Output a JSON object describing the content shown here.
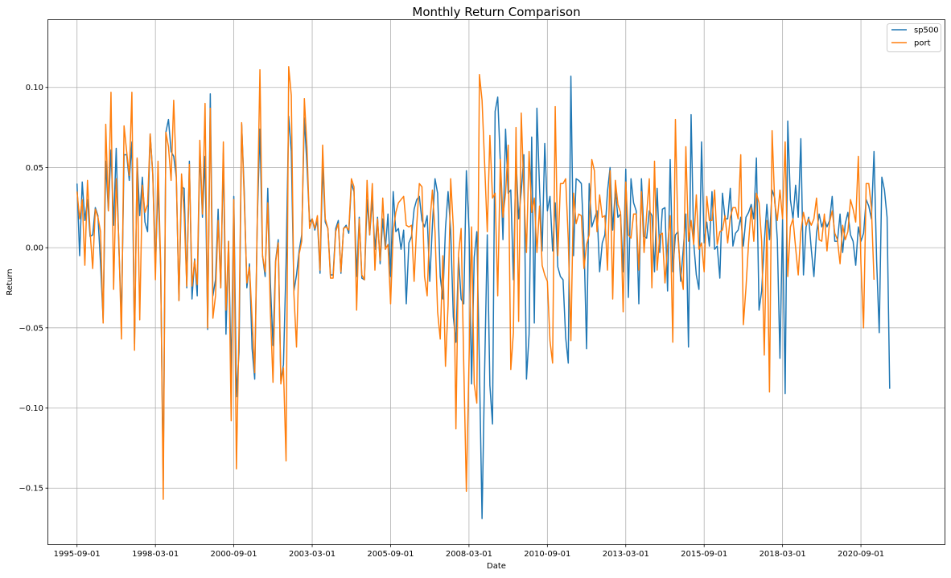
{
  "chart_data": {
    "type": "line",
    "title": "Monthly Return Comparison",
    "xlabel": "Date",
    "ylabel": "Return",
    "x_ticks": [
      "1995-09-01",
      "1998-03-01",
      "2000-09-01",
      "2003-03-01",
      "2005-09-01",
      "2008-03-01",
      "2010-09-01",
      "2013-03-01",
      "2015-09-01",
      "2018-03-01",
      "2020-09-01"
    ],
    "y_ticks": [
      -0.15,
      -0.1,
      -0.05,
      0.0,
      0.05,
      0.1
    ],
    "y_tick_labels": [
      "−0.15",
      "−0.10",
      "−0.05",
      "0.00",
      "0.05",
      "0.10"
    ],
    "xlim": [
      "1994-10-01",
      "2023-05-01"
    ],
    "ylim": [
      -0.185,
      0.142
    ],
    "grid": true,
    "legend_position": "top-right",
    "x_dates": {
      "start": "1995-09-01",
      "frequency": "monthly",
      "count": 325
    },
    "series": [
      {
        "name": "sp500",
        "color": "#1f77b4",
        "values": [
          0.04,
          -0.005,
          0.041,
          0.017,
          0.03,
          0.007,
          0.008,
          0.025,
          0.02,
          -0.01,
          -0.045,
          0.054,
          0.023,
          0.061,
          0.014,
          0.062,
          0.001,
          -0.045,
          0.058,
          0.058,
          0.042,
          0.066,
          -0.06,
          0.055,
          0.02,
          0.044,
          0.016,
          0.01,
          0.071,
          0.046,
          -0.012,
          0.039,
          -0.012,
          -0.145,
          0.072,
          0.08,
          0.06,
          0.057,
          0.044,
          -0.033,
          0.038,
          0.037,
          -0.025,
          0.054,
          -0.032,
          -0.007,
          -0.03,
          0.061,
          0.019,
          0.057,
          -0.051,
          0.096,
          -0.03,
          -0.02,
          0.024,
          -0.025,
          0.059,
          -0.054,
          0.004,
          -0.08,
          0.032,
          -0.093,
          -0.065,
          0.077,
          0.035,
          -0.025,
          -0.01,
          -0.063,
          -0.082,
          0.018,
          0.074,
          -0.005,
          -0.018,
          0.037,
          -0.022,
          -0.061,
          -0.008,
          0.005,
          -0.083,
          -0.073,
          -0.01,
          0.082,
          0.06,
          -0.027,
          -0.017,
          -0.002,
          0.008,
          0.081,
          0.051,
          0.016,
          0.018,
          0.011,
          0.017,
          -0.016,
          0.051,
          0.016,
          0.012,
          -0.017,
          -0.017,
          0.012,
          0.017,
          -0.016,
          0.012,
          0.014,
          0.009,
          0.04,
          0.035,
          -0.018,
          0.019,
          -0.019,
          -0.02,
          0.03,
          0.008,
          0.03,
          -0.001,
          0.019,
          -0.01,
          0.018,
          -0.001,
          0.021,
          -0.018,
          0.035,
          0.01,
          0.012,
          -0.001,
          0.011,
          -0.035,
          0.003,
          0.007,
          0.024,
          0.03,
          0.032,
          0.017,
          0.013,
          0.02,
          -0.021,
          0.014,
          0.043,
          0.034,
          -0.018,
          -0.032,
          0.012,
          0.035,
          0.011,
          -0.043,
          -0.059,
          -0.006,
          -0.032,
          -0.035,
          0.048,
          0.012,
          -0.085,
          -0.006,
          0.01,
          -0.075,
          -0.169,
          -0.076,
          0.008,
          -0.086,
          -0.11,
          0.085,
          0.094,
          0.053,
          0.005,
          0.074,
          0.034,
          0.036,
          -0.02,
          0.057,
          0.018,
          0.035,
          0.058,
          -0.082,
          -0.054,
          0.069,
          -0.047,
          0.087,
          0.037,
          -0.002,
          0.065,
          0.023,
          0.032,
          -0.002,
          0.028,
          -0.012,
          -0.018,
          -0.02,
          -0.056,
          -0.072,
          0.107,
          -0.005,
          0.043,
          0.042,
          0.04,
          0.004,
          -0.063,
          0.04,
          0.013,
          0.018,
          0.023,
          -0.015,
          0.003,
          0.008,
          0.035,
          0.05,
          0.011,
          0.036,
          0.019,
          0.021,
          -0.015,
          0.049,
          -0.031,
          0.043,
          0.028,
          0.023,
          -0.035,
          0.043,
          0.007,
          0.006,
          0.023,
          0.02,
          -0.015,
          0.037,
          -0.003,
          0.024,
          0.025,
          -0.027,
          0.055,
          -0.015,
          0.008,
          0.01,
          -0.021,
          -0.001,
          0.021,
          -0.062,
          0.083,
          0.003,
          -0.017,
          -0.026,
          0.066,
          0.003,
          0.016,
          0.001,
          0.035,
          -0.001,
          0.001,
          -0.019,
          0.034,
          0.018,
          0.018,
          0.037,
          0.001,
          0.009,
          0.011,
          0.019,
          0.001,
          0.019,
          0.022,
          0.027,
          0.018,
          0.056,
          -0.039,
          -0.027,
          0.003,
          0.027,
          0.005,
          0.036,
          0.031,
          0.005,
          -0.069,
          0.018,
          -0.091,
          0.079,
          0.03,
          0.018,
          0.039,
          0.019,
          0.068,
          -0.017,
          0.013,
          0.019,
          -0.001,
          -0.018,
          0.009,
          0.021,
          0.013,
          0.018,
          0.013,
          0.017,
          0.032,
          0.004,
          0.004,
          0.021,
          -0.003,
          0.015,
          0.022,
          0.008,
          0.004,
          -0.011,
          0.013,
          0.004,
          0.009,
          0.03,
          0.026,
          0.018,
          0.06,
          -0.008,
          -0.053,
          0.044,
          0.036,
          0.019,
          -0.088
        ]
      },
      {
        "name": "port",
        "color": "#ff7f0e",
        "values": [
          0.035,
          0.018,
          0.03,
          -0.011,
          0.042,
          0.01,
          -0.013,
          0.024,
          0.019,
          0.01,
          -0.047,
          0.077,
          0.023,
          0.097,
          -0.026,
          0.043,
          0.005,
          -0.057,
          0.076,
          0.06,
          0.045,
          0.097,
          -0.064,
          0.056,
          -0.045,
          0.039,
          0.022,
          0.027,
          0.071,
          0.045,
          -0.02,
          0.054,
          -0.01,
          -0.157,
          0.072,
          0.063,
          0.042,
          0.092,
          0.045,
          -0.033,
          0.046,
          0.021,
          -0.024,
          0.052,
          -0.024,
          -0.008,
          -0.023,
          0.067,
          0.021,
          0.09,
          -0.05,
          0.087,
          -0.044,
          -0.03,
          0.017,
          -0.025,
          0.066,
          -0.039,
          0.004,
          -0.108,
          0.03,
          -0.138,
          -0.05,
          0.078,
          0.03,
          -0.022,
          -0.012,
          -0.044,
          -0.078,
          0.02,
          0.111,
          -0.005,
          -0.015,
          0.028,
          -0.04,
          -0.084,
          -0.009,
          0.003,
          -0.085,
          -0.075,
          -0.133,
          0.113,
          0.095,
          -0.029,
          -0.062,
          -0.004,
          0.004,
          0.093,
          0.063,
          0.012,
          0.018,
          0.012,
          0.02,
          -0.014,
          0.064,
          0.018,
          0.012,
          -0.019,
          -0.019,
          0.01,
          0.015,
          -0.015,
          0.012,
          0.013,
          0.011,
          0.043,
          0.038,
          -0.039,
          0.018,
          -0.017,
          -0.02,
          0.042,
          0.008,
          0.04,
          -0.014,
          0.018,
          -0.008,
          0.031,
          -0.001,
          0.002,
          -0.035,
          0.01,
          0.022,
          0.028,
          0.03,
          0.032,
          0.014,
          0.013,
          0.014,
          -0.021,
          0.014,
          0.04,
          0.038,
          -0.018,
          -0.03,
          0.015,
          0.036,
          0.01,
          -0.04,
          -0.057,
          -0.005,
          -0.074,
          -0.036,
          0.043,
          0.013,
          -0.113,
          -0.004,
          0.012,
          -0.073,
          -0.152,
          -0.072,
          0.013,
          -0.085,
          -0.097,
          0.108,
          0.092,
          0.052,
          0.01,
          0.07,
          0.031,
          0.034,
          -0.03,
          0.055,
          0.019,
          0.034,
          0.064,
          -0.076,
          -0.053,
          0.075,
          -0.046,
          0.084,
          0.035,
          -0.003,
          0.06,
          0.022,
          0.031,
          -0.003,
          0.026,
          -0.011,
          -0.017,
          -0.021,
          -0.058,
          -0.072,
          0.088,
          -0.005,
          0.04,
          0.04,
          0.043,
          0.005,
          -0.058,
          0.034,
          0.015,
          0.021,
          0.02,
          -0.013,
          0.002,
          0.008,
          0.055,
          0.048,
          0.01,
          0.033,
          0.019,
          0.02,
          -0.014,
          0.048,
          -0.032,
          0.042,
          0.027,
          0.022,
          -0.04,
          0.041,
          0.008,
          0.006,
          0.021,
          0.021,
          -0.014,
          0.035,
          -0.003,
          0.021,
          0.043,
          -0.025,
          0.054,
          -0.014,
          0.008,
          0.009,
          -0.022,
          0.001,
          0.02,
          -0.059,
          0.08,
          0.006,
          -0.015,
          -0.026,
          0.063,
          0.004,
          0.017,
          0.002,
          0.033,
          -0.001,
          0.003,
          -0.015,
          0.032,
          0.017,
          0.017,
          0.036,
          0.002,
          0.01,
          0.011,
          0.02,
          0.003,
          0.019,
          0.025,
          0.025,
          0.018,
          0.058,
          -0.048,
          -0.025,
          0.003,
          0.025,
          0.004,
          0.034,
          0.028,
          0.004,
          -0.067,
          0.017,
          -0.09,
          0.073,
          0.028,
          0.017,
          0.036,
          0.018,
          0.066,
          -0.018,
          0.013,
          0.018,
          0,
          -0.017,
          0.01,
          0.022,
          0.014,
          0.018,
          0.014,
          0.018,
          0.031,
          0.005,
          0.004,
          0.021,
          -0.002,
          0.016,
          0.023,
          0.009,
          0.005,
          -0.01,
          0.014,
          0.005,
          0.01,
          0.03,
          0.024,
          0.016,
          0.057,
          -0.01,
          -0.05,
          0.04,
          0.04,
          0.025,
          -0.02
        ]
      }
    ]
  }
}
